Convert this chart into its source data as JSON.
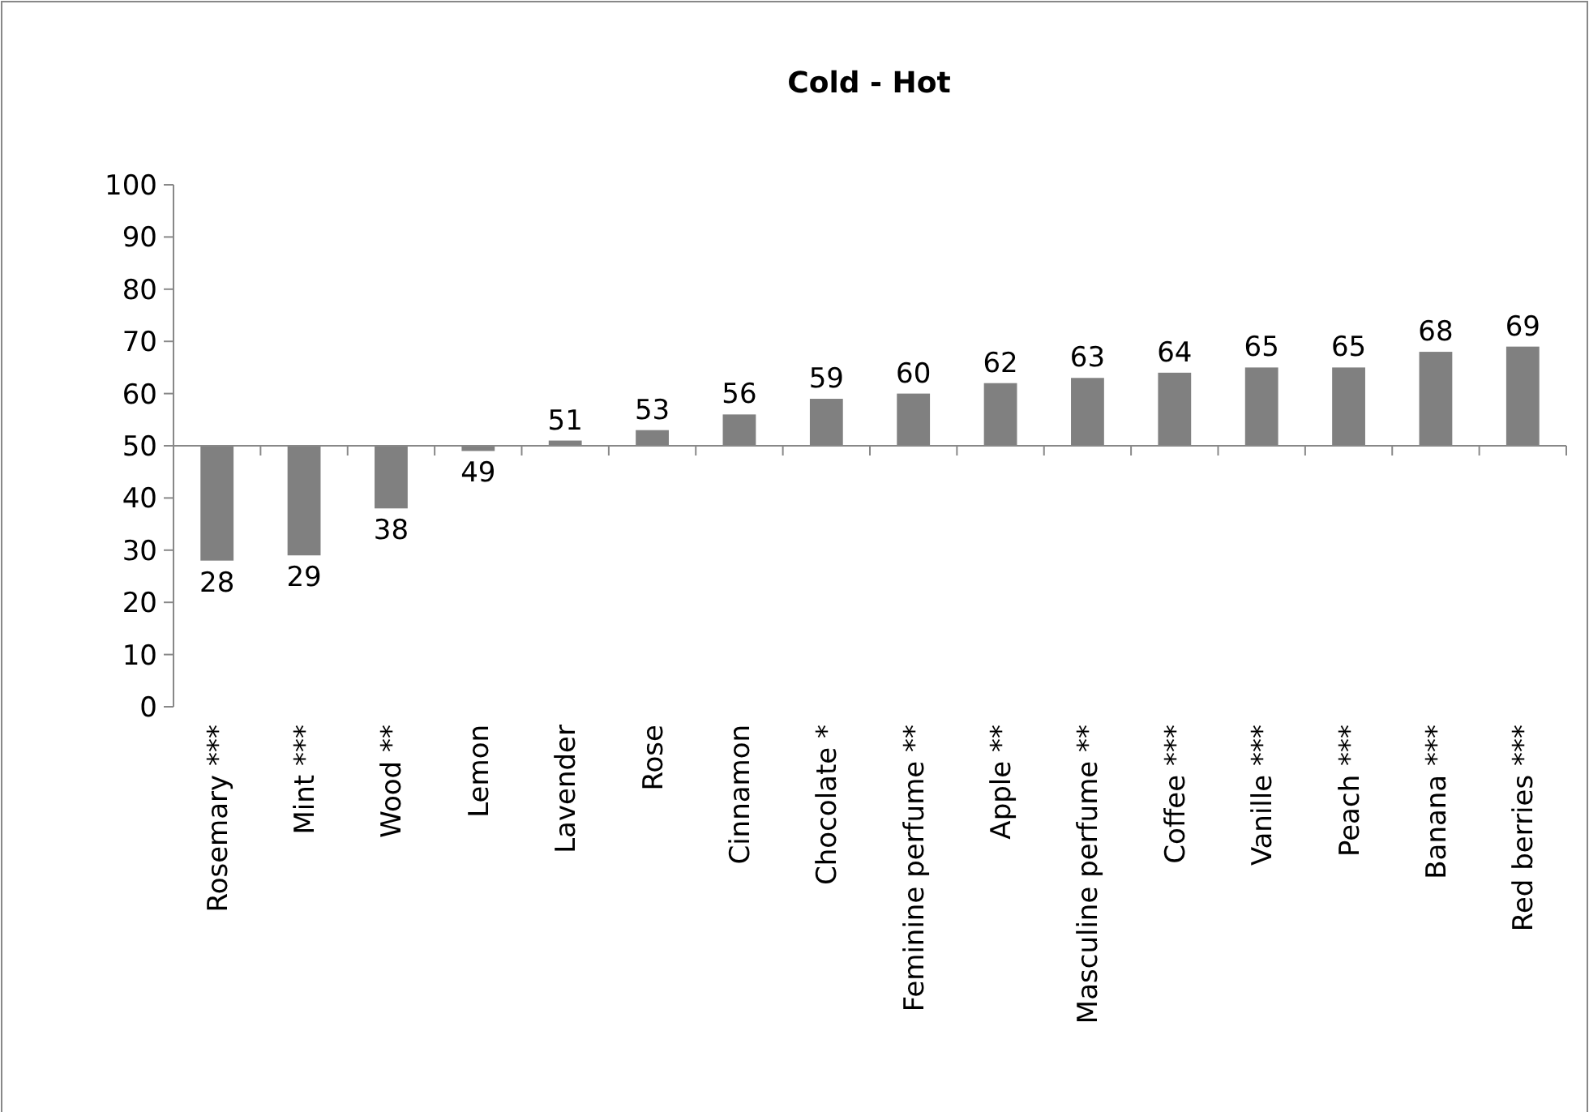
{
  "chart_data": {
    "type": "bar",
    "title": "Cold - Hot",
    "categories": [
      "Rosemary ***",
      "Mint ***",
      "Wood **",
      "Lemon",
      "Lavender",
      "Rose",
      "Cinnamon",
      "Chocolate *",
      "Feminine perfume **",
      "Apple **",
      "Masculine perfume **",
      "Coffee ***",
      "Vanille ***",
      "Peach ***",
      "Banana ***",
      "Red berries ***"
    ],
    "base": [
      50,
      50,
      50,
      50,
      50,
      50,
      50,
      50,
      50,
      50,
      50,
      50,
      50,
      50,
      50,
      50
    ],
    "values": [
      -22,
      -21,
      -12,
      -1,
      1,
      3,
      6,
      9,
      10,
      12,
      13,
      14,
      15,
      15,
      18,
      19
    ],
    "value_labels": [
      "28",
      "29",
      "38",
      "49",
      "51",
      "53",
      "56",
      "59",
      "60",
      "62",
      "63",
      "64",
      "65",
      "65",
      "68",
      "69"
    ],
    "color": "#808080",
    "ylim": [
      0,
      100
    ],
    "yticks": [
      0,
      10,
      20,
      30,
      40,
      50,
      60,
      70,
      80,
      90,
      100
    ],
    "ref_lines": [
      {
        "axis": "y",
        "value": 50,
        "color": "#888888"
      }
    ]
  }
}
